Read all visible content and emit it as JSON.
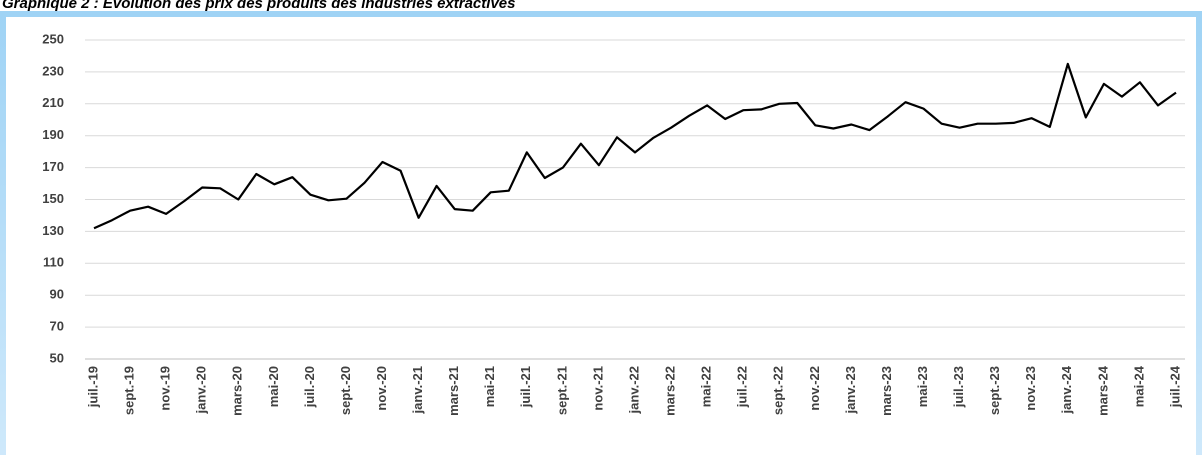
{
  "chart_data": {
    "type": "line",
    "title": "Graphique 2 : Évolution des prix des produits des industries extractives",
    "categories": [
      "juil.-19",
      null,
      "sept.-19",
      null,
      "nov.-19",
      null,
      "janv.-20",
      null,
      "mars-20",
      null,
      "mai-20",
      null,
      "juil.-20",
      null,
      "sept.-20",
      null,
      "nov.-20",
      null,
      "janv.-21",
      null,
      "mars-21",
      null,
      "mai-21",
      null,
      "juil.-21",
      null,
      "sept.-21",
      null,
      "nov.-21",
      null,
      "janv.-22",
      null,
      "mars-22",
      null,
      "mai-22",
      null,
      "juil.-22",
      null,
      "sept.-22",
      null,
      "nov.-22",
      null,
      "janv.-23",
      null,
      "mars-23",
      null,
      "mai-23",
      null,
      "juil.-23",
      null,
      "sept.-23",
      null,
      "nov.-23",
      null,
      "janv.-24",
      null,
      "mars-24",
      null,
      "mai-24",
      null,
      "juil.-24"
    ],
    "values": [
      132,
      137,
      143,
      145.5,
      141,
      149,
      157.5,
      157,
      150,
      166,
      159.5,
      164,
      153,
      149.5,
      150.5,
      160.5,
      173.5,
      168,
      138.5,
      158.5,
      144,
      143,
      154.5,
      155.5,
      179.5,
      163.5,
      170,
      185,
      171.5,
      189,
      179.5,
      188.5,
      195,
      202.5,
      209,
      200.5,
      206,
      206.5,
      210,
      210.5,
      196.5,
      194.5,
      197,
      193.5,
      202,
      211,
      207,
      197.5,
      195,
      197.5,
      197.5,
      198,
      201,
      195.5,
      235,
      201.5,
      222.5,
      214.5,
      223.5,
      209,
      217
    ],
    "color": "#000000",
    "ylim": [
      50,
      250
    ],
    "yticks": [
      50,
      70,
      90,
      110,
      130,
      150,
      170,
      190,
      210,
      230,
      250
    ],
    "grid": true
  }
}
